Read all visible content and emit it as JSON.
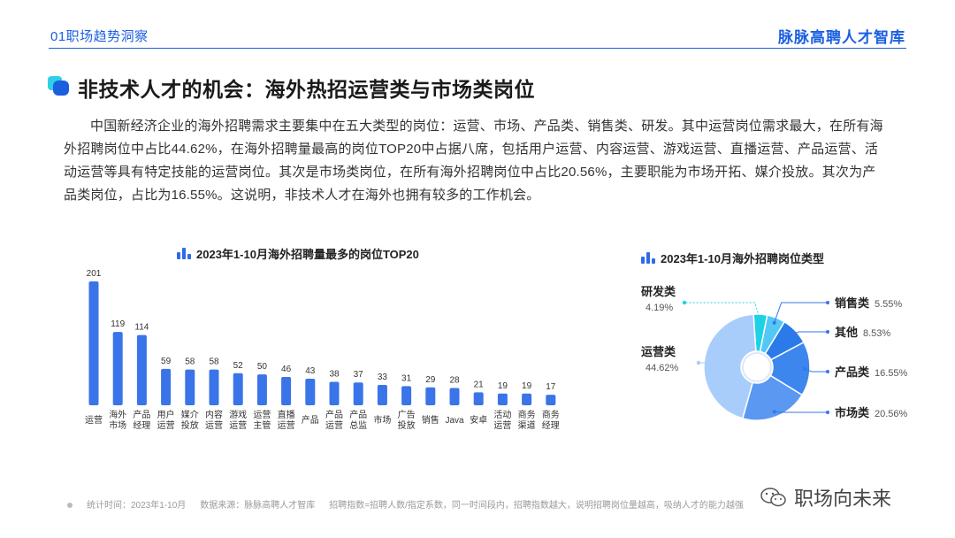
{
  "header": {
    "section": "01职场趋势洞察",
    "brand": "脉脉高聘人才智库"
  },
  "title": "非技术人才的机会：海外热招运营类与市场类岗位",
  "paragraph": "中国新经济企业的海外招聘需求主要集中在五大类型的岗位：运营、市场、产品类、销售类、研发。其中运营岗位需求最大，在所有海外招聘岗位中占比44.62%，在海外招聘量最高的岗位TOP20中占据八席，包括用户运营、内容运营、游戏运营、直播运营、产品运营、活动运营等具有特定技能的运营岗位。其次是市场类岗位，在所有海外招聘岗位中占比20.56%，主要职能为市场开拓、媒介投放。其次为产品类岗位，占比为16.55%。这说明，非技术人才在海外也拥有较多的工作机会。",
  "colors": {
    "accent": "#2f6be8",
    "bar": "#3a74e8"
  },
  "chart_data": [
    {
      "type": "bar",
      "title": "2023年1-10月海外招聘量最多的岗位TOP20",
      "categories": [
        "运营",
        "海外市场",
        "产品经理",
        "用户运营",
        "媒介投放",
        "内容运营",
        "游戏运营",
        "运营主管",
        "直播运营",
        "产品",
        "产品运营",
        "产品总监",
        "市场",
        "广告投放",
        "销售",
        "Java",
        "安卓",
        "活动运营",
        "商务渠道",
        "商务经理"
      ],
      "category_lines": [
        [
          "运营"
        ],
        [
          "海外",
          "市场"
        ],
        [
          "产品",
          "经理"
        ],
        [
          "用户",
          "运营"
        ],
        [
          "媒介",
          "投放"
        ],
        [
          "内容",
          "运营"
        ],
        [
          "游戏",
          "运营"
        ],
        [
          "运营",
          "主管"
        ],
        [
          "直播",
          "运营"
        ],
        [
          "产品"
        ],
        [
          "产品",
          "运营"
        ],
        [
          "产品",
          "总监"
        ],
        [
          "市场"
        ],
        [
          "广告",
          "投放"
        ],
        [
          "销售"
        ],
        [
          "Java"
        ],
        [
          "安卓"
        ],
        [
          "活动",
          "运营"
        ],
        [
          "商务",
          "渠道"
        ],
        [
          "商务",
          "经理"
        ]
      ],
      "values": [
        201,
        119,
        114,
        59,
        58,
        58,
        52,
        50,
        46,
        43,
        38,
        37,
        33,
        31,
        29,
        28,
        21,
        19,
        19,
        17
      ]
    },
    {
      "type": "pie",
      "title": "2023年1-10月海外招聘岗位类型",
      "slices": [
        {
          "label": "运营类",
          "value": 44.62,
          "value_label": "44.62%",
          "color": "#a9cdfb"
        },
        {
          "label": "研发类",
          "value": 4.19,
          "value_label": "4.19%",
          "color": "#1ed2e6"
        },
        {
          "label": "销售类",
          "value": 5.55,
          "value_label": "5.55%",
          "color": "#53c8f4"
        },
        {
          "label": "其他",
          "value": 8.53,
          "value_label": "8.53%",
          "color": "#2a7be9"
        },
        {
          "label": "产品类",
          "value": 16.55,
          "value_label": "16.55%",
          "color": "#3d86ee"
        },
        {
          "label": "市场类",
          "value": 20.56,
          "value_label": "20.56%",
          "color": "#5a98f2"
        }
      ]
    }
  ],
  "footer": {
    "time": "统计时间：2023年1-10月",
    "source": "数据来源：脉脉高聘人才智库",
    "note": "招聘指数=招聘人数/指定系数，同一时间段内，招聘指数越大，说明招聘岗位量越高，吸纳人才的能力越强"
  },
  "watermark": "职场向未来"
}
